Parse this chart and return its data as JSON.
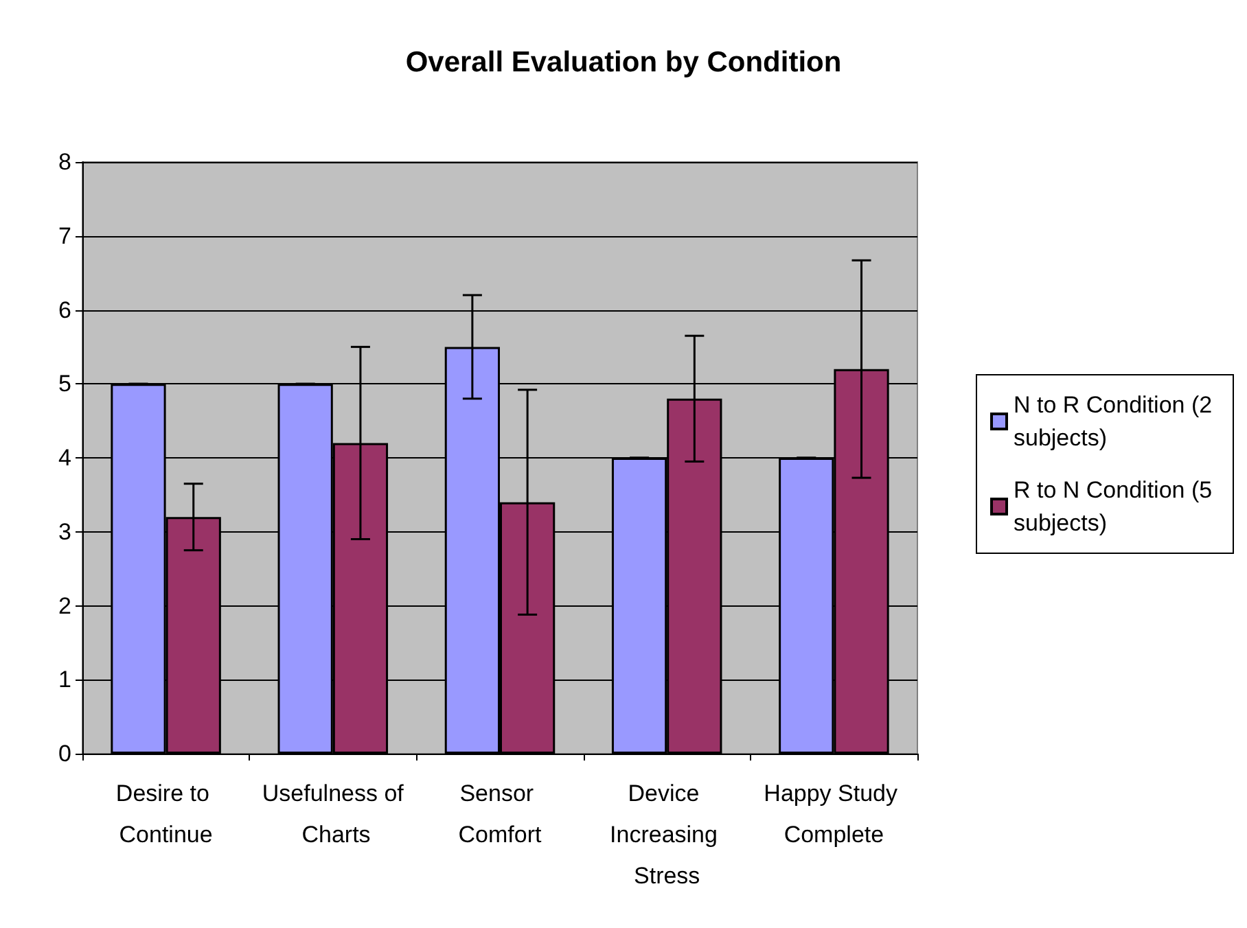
{
  "chart_data": {
    "type": "bar",
    "title": "Overall Evaluation by Condition",
    "categories": [
      "Desire to Continue",
      "Usefulness of Charts",
      "Sensor Comfort",
      "Device Increasing Stress",
      "Happy Study Complete"
    ],
    "series": [
      {
        "name": "N to R Condition (2 subjects)",
        "color": "#9999ff",
        "values": [
          5,
          5,
          5.5,
          4,
          4
        ],
        "errors": [
          0,
          0,
          0.7,
          0,
          0
        ]
      },
      {
        "name": "R to N Condition (5 subjects)",
        "color": "#993366",
        "values": [
          3.2,
          4.2,
          3.4,
          4.8,
          5.2
        ],
        "errors": [
          0.45,
          1.3,
          1.52,
          0.85,
          1.47
        ]
      }
    ],
    "ylim": [
      0,
      8
    ],
    "yticks": [
      0,
      1,
      2,
      3,
      4,
      5,
      6,
      7,
      8
    ],
    "grid": "y",
    "legend": "right"
  }
}
